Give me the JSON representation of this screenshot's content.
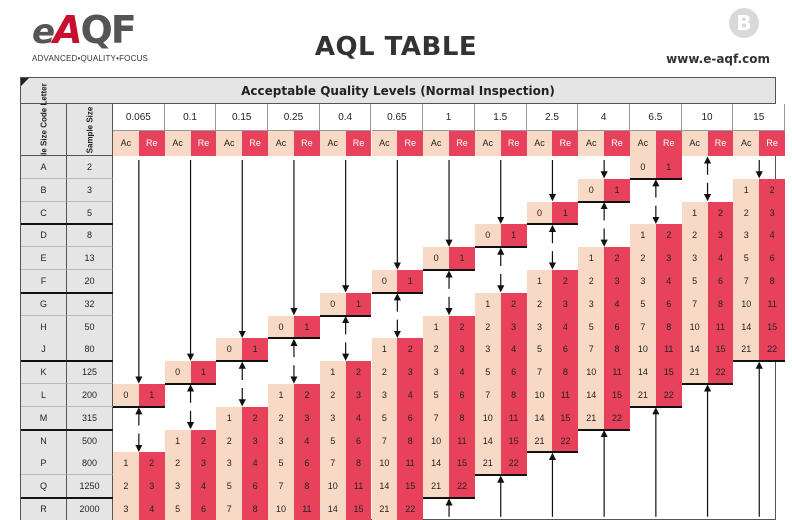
{
  "header": {
    "logo_main": "eAQF",
    "logo_tagline": "ADVANCED•QUALITY•FOCUS",
    "title": "AQL TABLE",
    "badge": "B",
    "url": "www.e-aqf.com"
  },
  "colors": {
    "ac": "#f8d9c6",
    "re": "#e8415c",
    "header_bg": "#e5e5e5",
    "brand_red": "#c8102e"
  },
  "table": {
    "caption": "Acceptable Quality Levels (Normal Inspection)",
    "col_code_label": "Sample Size Code Letter",
    "col_size_label": "Sample Size",
    "ac_label": "Ac",
    "re_label": "Re",
    "aql_levels": [
      "0.065",
      "0.1",
      "0.15",
      "0.25",
      "0.4",
      "0.65",
      "1",
      "1.5",
      "2.5",
      "4",
      "6.5",
      "10",
      "15"
    ],
    "rows": [
      {
        "code": "A",
        "size": "2",
        "cells": [
          [
            "↓"
          ],
          [
            "↓"
          ],
          [
            "↓"
          ],
          [
            "↓"
          ],
          [
            "↓"
          ],
          [
            "↓"
          ],
          [
            "↓"
          ],
          [
            "↓"
          ],
          [
            "↓"
          ],
          [
            "↓"
          ],
          [
            "0",
            "1"
          ],
          [
            "↑"
          ],
          [
            "↓"
          ]
        ]
      },
      {
        "code": "B",
        "size": "3",
        "cells": [
          [
            "↓"
          ],
          [
            "↓"
          ],
          [
            "↓"
          ],
          [
            "↓"
          ],
          [
            "↓"
          ],
          [
            "↓"
          ],
          [
            "↓"
          ],
          [
            "↓"
          ],
          [
            "↓"
          ],
          [
            "0",
            "1"
          ],
          [
            "↑"
          ],
          [
            "↓"
          ],
          [
            "1",
            "2"
          ]
        ]
      },
      {
        "code": "C",
        "size": "5",
        "cells": [
          [
            "↓"
          ],
          [
            "↓"
          ],
          [
            "↓"
          ],
          [
            "↓"
          ],
          [
            "↓"
          ],
          [
            "↓"
          ],
          [
            "↓"
          ],
          [
            "↓"
          ],
          [
            "0",
            "1"
          ],
          [
            "↑"
          ],
          [
            "↓"
          ],
          [
            "1",
            "2"
          ],
          [
            "2",
            "3"
          ]
        ]
      },
      {
        "code": "D",
        "size": "8",
        "cells": [
          [
            "↓"
          ],
          [
            "↓"
          ],
          [
            "↓"
          ],
          [
            "↓"
          ],
          [
            "↓"
          ],
          [
            "↓"
          ],
          [
            "↓"
          ],
          [
            "0",
            "1"
          ],
          [
            "↑"
          ],
          [
            "↓"
          ],
          [
            "1",
            "2"
          ],
          [
            "2",
            "3"
          ],
          [
            "3",
            "4"
          ]
        ]
      },
      {
        "code": "E",
        "size": "13",
        "cells": [
          [
            "↓"
          ],
          [
            "↓"
          ],
          [
            "↓"
          ],
          [
            "↓"
          ],
          [
            "↓"
          ],
          [
            "↓"
          ],
          [
            "0",
            "1"
          ],
          [
            "↑"
          ],
          [
            "↓"
          ],
          [
            "1",
            "2"
          ],
          [
            "2",
            "3"
          ],
          [
            "3",
            "4"
          ],
          [
            "5",
            "6"
          ]
        ]
      },
      {
        "code": "F",
        "size": "20",
        "cells": [
          [
            "↓"
          ],
          [
            "↓"
          ],
          [
            "↓"
          ],
          [
            "↓"
          ],
          [
            "↓"
          ],
          [
            "0",
            "1"
          ],
          [
            "↑"
          ],
          [
            "↓"
          ],
          [
            "1",
            "2"
          ],
          [
            "2",
            "3"
          ],
          [
            "3",
            "4"
          ],
          [
            "5",
            "6"
          ],
          [
            "7",
            "8"
          ]
        ]
      },
      {
        "code": "G",
        "size": "32",
        "cells": [
          [
            "↓"
          ],
          [
            "↓"
          ],
          [
            "↓"
          ],
          [
            "↓"
          ],
          [
            "0",
            "1"
          ],
          [
            "↑"
          ],
          [
            "↓"
          ],
          [
            "1",
            "2"
          ],
          [
            "2",
            "3"
          ],
          [
            "3",
            "4"
          ],
          [
            "5",
            "6"
          ],
          [
            "7",
            "8"
          ],
          [
            "10",
            "11"
          ]
        ]
      },
      {
        "code": "H",
        "size": "50",
        "cells": [
          [
            "↓"
          ],
          [
            "↓"
          ],
          [
            "↓"
          ],
          [
            "0",
            "1"
          ],
          [
            "↑"
          ],
          [
            "↓"
          ],
          [
            "1",
            "2"
          ],
          [
            "2",
            "3"
          ],
          [
            "3",
            "4"
          ],
          [
            "5",
            "6"
          ],
          [
            "7",
            "8"
          ],
          [
            "10",
            "11"
          ],
          [
            "14",
            "15"
          ]
        ]
      },
      {
        "code": "J",
        "size": "80",
        "cells": [
          [
            "↓"
          ],
          [
            "↓"
          ],
          [
            "0",
            "1"
          ],
          [
            "↑"
          ],
          [
            "↓"
          ],
          [
            "1",
            "2"
          ],
          [
            "2",
            "3"
          ],
          [
            "3",
            "4"
          ],
          [
            "5",
            "6"
          ],
          [
            "7",
            "8"
          ],
          [
            "10",
            "11"
          ],
          [
            "14",
            "15"
          ],
          [
            "21",
            "22"
          ]
        ]
      },
      {
        "code": "K",
        "size": "125",
        "cells": [
          [
            "↓"
          ],
          [
            "0",
            "1"
          ],
          [
            "↑"
          ],
          [
            "↓"
          ],
          [
            "1",
            "2"
          ],
          [
            "2",
            "3"
          ],
          [
            "3",
            "4"
          ],
          [
            "5",
            "6"
          ],
          [
            "7",
            "8"
          ],
          [
            "10",
            "11"
          ],
          [
            "14",
            "15"
          ],
          [
            "21",
            "22"
          ],
          [
            "↑"
          ]
        ]
      },
      {
        "code": "L",
        "size": "200",
        "cells": [
          [
            "0",
            "1"
          ],
          [
            "↑"
          ],
          [
            "↓"
          ],
          [
            "1",
            "2"
          ],
          [
            "2",
            "3"
          ],
          [
            "3",
            "4"
          ],
          [
            "5",
            "6"
          ],
          [
            "7",
            "8"
          ],
          [
            "10",
            "11"
          ],
          [
            "14",
            "15"
          ],
          [
            "21",
            "22"
          ],
          [
            "↑"
          ],
          [
            "↑"
          ]
        ]
      },
      {
        "code": "M",
        "size": "315",
        "cells": [
          [
            "↑"
          ],
          [
            "↓"
          ],
          [
            "1",
            "2"
          ],
          [
            "2",
            "3"
          ],
          [
            "3",
            "4"
          ],
          [
            "5",
            "6"
          ],
          [
            "7",
            "8"
          ],
          [
            "10",
            "11"
          ],
          [
            "14",
            "15"
          ],
          [
            "21",
            "22"
          ],
          [
            "↑"
          ],
          [
            "↑"
          ],
          [
            "↑"
          ]
        ]
      },
      {
        "code": "N",
        "size": "500",
        "cells": [
          [
            "↓"
          ],
          [
            "1",
            "2"
          ],
          [
            "2",
            "3"
          ],
          [
            "3",
            "4"
          ],
          [
            "5",
            "6"
          ],
          [
            "7",
            "8"
          ],
          [
            "10",
            "11"
          ],
          [
            "14",
            "15"
          ],
          [
            "21",
            "22"
          ],
          [
            "↑"
          ],
          [
            "↑"
          ],
          [
            "↑"
          ],
          [
            "↑"
          ]
        ]
      },
      {
        "code": "P",
        "size": "800",
        "cells": [
          [
            "1",
            "2"
          ],
          [
            "2",
            "3"
          ],
          [
            "3",
            "4"
          ],
          [
            "5",
            "6"
          ],
          [
            "7",
            "8"
          ],
          [
            "10",
            "11"
          ],
          [
            "14",
            "15"
          ],
          [
            "21",
            "22"
          ],
          [
            "↑"
          ],
          [
            "↑"
          ],
          [
            "↑"
          ],
          [
            "↑"
          ],
          [
            "↑"
          ]
        ]
      },
      {
        "code": "Q",
        "size": "1250",
        "cells": [
          [
            "2",
            "3"
          ],
          [
            "3",
            "4"
          ],
          [
            "5",
            "6"
          ],
          [
            "7",
            "8"
          ],
          [
            "10",
            "11"
          ],
          [
            "14",
            "15"
          ],
          [
            "21",
            "22"
          ],
          [
            "↑"
          ],
          [
            "↑"
          ],
          [
            "↑"
          ],
          [
            "↑"
          ],
          [
            "↑"
          ],
          [
            "↑"
          ]
        ]
      },
      {
        "code": "R",
        "size": "2000",
        "cells": [
          [
            "3",
            "4"
          ],
          [
            "5",
            "6"
          ],
          [
            "7",
            "8"
          ],
          [
            "10",
            "11"
          ],
          [
            "14",
            "15"
          ],
          [
            "21",
            "22"
          ],
          [
            "↑"
          ],
          [
            "↑"
          ],
          [
            "↑"
          ],
          [
            "↑"
          ],
          [
            "↑"
          ],
          [
            "↑"
          ],
          [
            "↑"
          ]
        ]
      }
    ]
  }
}
